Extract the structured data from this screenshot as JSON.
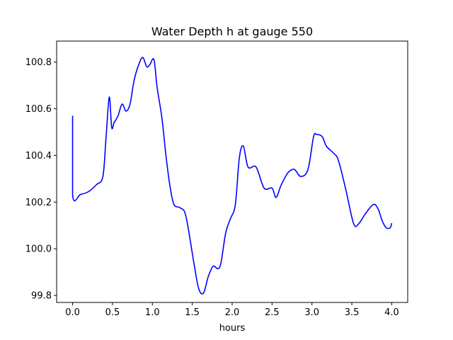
{
  "chart_data": {
    "type": "line",
    "title": "Water Depth h at gauge 550",
    "xlabel": "hours",
    "ylabel": "",
    "xlim": [
      -0.2,
      4.2
    ],
    "ylim": [
      99.77,
      100.89
    ],
    "xticks": [
      0.0,
      0.5,
      1.0,
      1.5,
      2.0,
      2.5,
      3.0,
      3.5,
      4.0
    ],
    "xtick_labels": [
      "0.0",
      "0.5",
      "1.0",
      "1.5",
      "2.0",
      "2.5",
      "3.0",
      "3.5",
      "4.0"
    ],
    "yticks": [
      99.8,
      100.0,
      100.2,
      100.4,
      100.6,
      100.8
    ],
    "ytick_labels": [
      "99.8",
      "100.0",
      "100.2",
      "100.4",
      "100.6",
      "100.8"
    ],
    "grid": false,
    "legend": "none",
    "series": [
      {
        "color": "#0000ff",
        "x": [
          0.0,
          0.0,
          0.1,
          0.2,
          0.3,
          0.38,
          0.42,
          0.46,
          0.49,
          0.52,
          0.57,
          0.62,
          0.67,
          0.72,
          0.77,
          0.83,
          0.88,
          0.93,
          0.97,
          1.02,
          1.06,
          1.12,
          1.17,
          1.22,
          1.27,
          1.35,
          1.42,
          1.52,
          1.58,
          1.64,
          1.7,
          1.76,
          1.82,
          1.86,
          1.92,
          1.98,
          2.04,
          2.09,
          2.14,
          2.2,
          2.3,
          2.4,
          2.5,
          2.55,
          2.61,
          2.67,
          2.71,
          2.78,
          2.86,
          2.95,
          3.02,
          3.06,
          3.13,
          3.18,
          3.27,
          3.33,
          3.42,
          3.52,
          3.58,
          3.67,
          3.77,
          3.83,
          3.88,
          3.93,
          3.98,
          4.0
        ],
        "y": [
          100.57,
          100.23,
          100.233,
          100.245,
          100.275,
          100.31,
          100.48,
          100.65,
          100.52,
          100.54,
          100.57,
          100.62,
          100.59,
          100.62,
          100.72,
          100.79,
          100.82,
          100.78,
          100.79,
          100.81,
          100.69,
          100.56,
          100.4,
          100.27,
          100.19,
          100.175,
          100.14,
          99.94,
          99.83,
          99.81,
          99.88,
          99.925,
          99.915,
          99.94,
          100.07,
          100.13,
          100.19,
          100.39,
          100.44,
          100.35,
          100.35,
          100.26,
          100.26,
          100.22,
          100.27,
          100.31,
          100.33,
          100.34,
          100.31,
          100.34,
          100.48,
          100.49,
          100.48,
          100.44,
          100.41,
          100.38,
          100.26,
          100.11,
          100.105,
          100.15,
          100.19,
          100.17,
          100.12,
          100.09,
          100.09,
          100.11
        ]
      }
    ]
  }
}
